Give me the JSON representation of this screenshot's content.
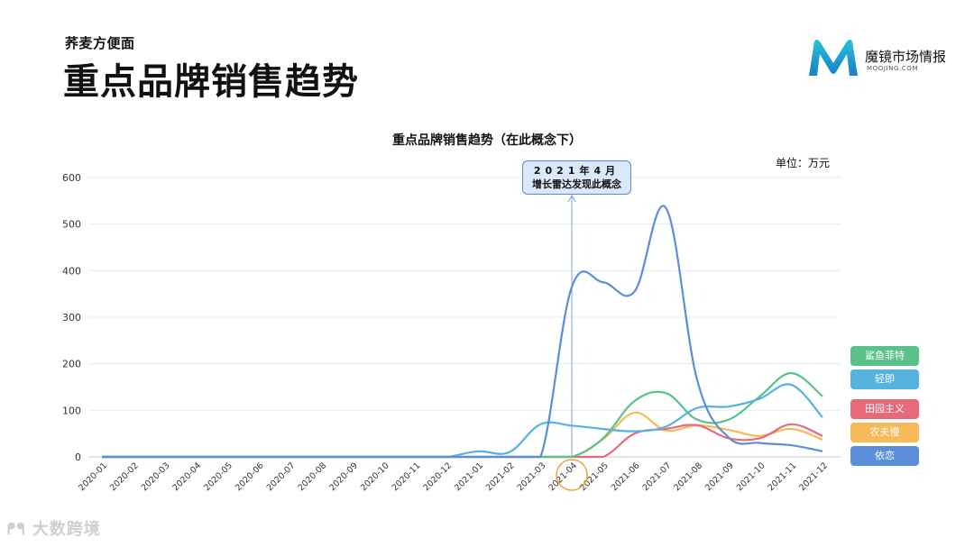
{
  "header": {
    "subtitle": "荞麦方便面",
    "title": "重点品牌销售趋势"
  },
  "logo": {
    "name": "魔镜市场情报",
    "sub": "MOOJING.COM",
    "colors": [
      "#1a7fc9",
      "#27c1d9"
    ]
  },
  "annotation": {
    "line1": "2021年4月",
    "line2": "增长雷达发现此概念"
  },
  "watermark": "大数跨境",
  "chart_data": {
    "type": "line",
    "title": "重点品牌销售趋势（在此概念下）",
    "unit": "单位：万元",
    "categories": [
      "2020-01",
      "2020-02",
      "2020-03",
      "2020-04",
      "2020-05",
      "2020-06",
      "2020-07",
      "2020-08",
      "2020-09",
      "2020-10",
      "2020-11",
      "2020-12",
      "2021-01",
      "2021-02",
      "2021-03",
      "2021-04",
      "2021-05",
      "2021-06",
      "2021-07",
      "2021-08",
      "2021-09",
      "2021-10",
      "2021-11",
      "2021-12"
    ],
    "yticks": [
      0,
      100,
      200,
      300,
      400,
      500,
      600
    ],
    "ylim": [
      0,
      600
    ],
    "grid": true,
    "legend_position": "right",
    "highlight_category": "2021-04",
    "series": [
      {
        "name": "鲨鱼菲特",
        "color": "#58c28a",
        "values": [
          0,
          0,
          0,
          0,
          0,
          0,
          0,
          0,
          0,
          0,
          0,
          0,
          0,
          0,
          0,
          0,
          40,
          120,
          137,
          80,
          80,
          130,
          180,
          130
        ]
      },
      {
        "name": "轻即",
        "color": "#56b3e0",
        "values": [
          0,
          0,
          0,
          0,
          0,
          0,
          0,
          0,
          0,
          0,
          0,
          0,
          12,
          10,
          70,
          67,
          60,
          55,
          65,
          105,
          108,
          125,
          155,
          85
        ]
      },
      {
        "name": "田园主义",
        "color": "#e8697a",
        "values": [
          0,
          0,
          0,
          0,
          0,
          0,
          0,
          0,
          0,
          0,
          0,
          0,
          0,
          0,
          0,
          0,
          0,
          50,
          60,
          68,
          40,
          40,
          70,
          45
        ]
      },
      {
        "name": "农夫慢",
        "color": "#f8ba58",
        "values": [
          0,
          0,
          0,
          0,
          0,
          0,
          0,
          0,
          0,
          0,
          0,
          0,
          0,
          0,
          0,
          0,
          38,
          95,
          57,
          68,
          58,
          45,
          60,
          37
        ]
      },
      {
        "name": "依恋",
        "color": "#5b8ed8",
        "values": [
          0,
          0,
          0,
          0,
          0,
          0,
          0,
          0,
          0,
          0,
          0,
          0,
          0,
          0,
          0,
          365,
          375,
          355,
          535,
          165,
          42,
          30,
          25,
          12
        ]
      }
    ]
  }
}
